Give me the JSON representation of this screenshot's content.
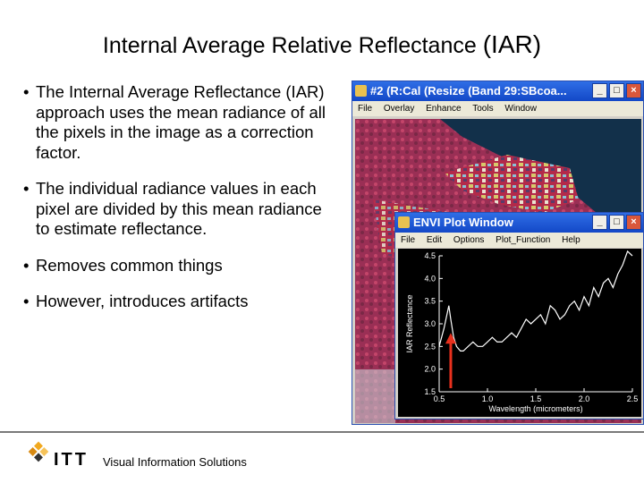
{
  "slide": {
    "title_main": "Internal Average Relative Reflectance",
    "title_abbr": "(IAR)",
    "bullets": [
      "The Internal Average Reflectance (IAR) approach uses the mean radiance of all the pixels in the image as a correction factor.",
      "The individual radiance values in each pixel are divided by this mean radiance to estimate reflectance.",
      "Removes common things",
      "However, introduces artifacts"
    ]
  },
  "image_window": {
    "title": "#2 (R:Cal (Resize (Band 29:SBcoa...",
    "menu": [
      "File",
      "Overlay",
      "Enhance",
      "Tools",
      "Window"
    ],
    "buttons": [
      "_",
      "□",
      "×"
    ]
  },
  "plot_window": {
    "title": "ENVI Plot Window",
    "menu": [
      "File",
      "Edit",
      "Options",
      "Plot_Function",
      "Help"
    ],
    "buttons": [
      "_",
      "□",
      "×"
    ]
  },
  "footer": {
    "brand": "ITT",
    "tagline": "Visual Information Solutions"
  },
  "colors": {
    "titlebar": "#1f5ad6",
    "arrow": "#e8301d",
    "plot_bg": "#000000",
    "plot_line": "#ffffff"
  },
  "chart_data": {
    "type": "line",
    "xlabel": "Wavelength (micrometers)",
    "ylabel": "IAR Reflectance",
    "xlim": [
      0.5,
      2.5
    ],
    "ylim": [
      1.5,
      4.5
    ],
    "xticks": [
      "0.5",
      "1.0",
      "1.5",
      "2.0",
      "2.5"
    ],
    "yticks": [
      "1.5",
      "2.0",
      "2.5",
      "3.0",
      "3.5",
      "4.0",
      "4.5"
    ],
    "series": [
      {
        "x": [
          0.5,
          0.55,
          0.6,
          0.62,
          0.65,
          0.68,
          0.72,
          0.75,
          0.8,
          0.85,
          0.9,
          0.95,
          1.0,
          1.05,
          1.1,
          1.15,
          1.2,
          1.25,
          1.3,
          1.35,
          1.4,
          1.45,
          1.5,
          1.55,
          1.6,
          1.65,
          1.7,
          1.75,
          1.8,
          1.85,
          1.9,
          1.95,
          2.0,
          2.05,
          2.1,
          2.15,
          2.2,
          2.25,
          2.3,
          2.35,
          2.4,
          2.45,
          2.5
        ],
        "y": [
          2.5,
          2.9,
          3.4,
          3.1,
          2.7,
          2.5,
          2.4,
          2.4,
          2.5,
          2.6,
          2.5,
          2.5,
          2.6,
          2.7,
          2.6,
          2.6,
          2.7,
          2.8,
          2.7,
          2.9,
          3.1,
          3.0,
          3.1,
          3.2,
          3.0,
          3.4,
          3.3,
          3.1,
          3.2,
          3.4,
          3.5,
          3.3,
          3.6,
          3.4,
          3.8,
          3.6,
          3.9,
          4.0,
          3.8,
          4.1,
          4.3,
          4.6,
          4.5
        ]
      }
    ]
  }
}
